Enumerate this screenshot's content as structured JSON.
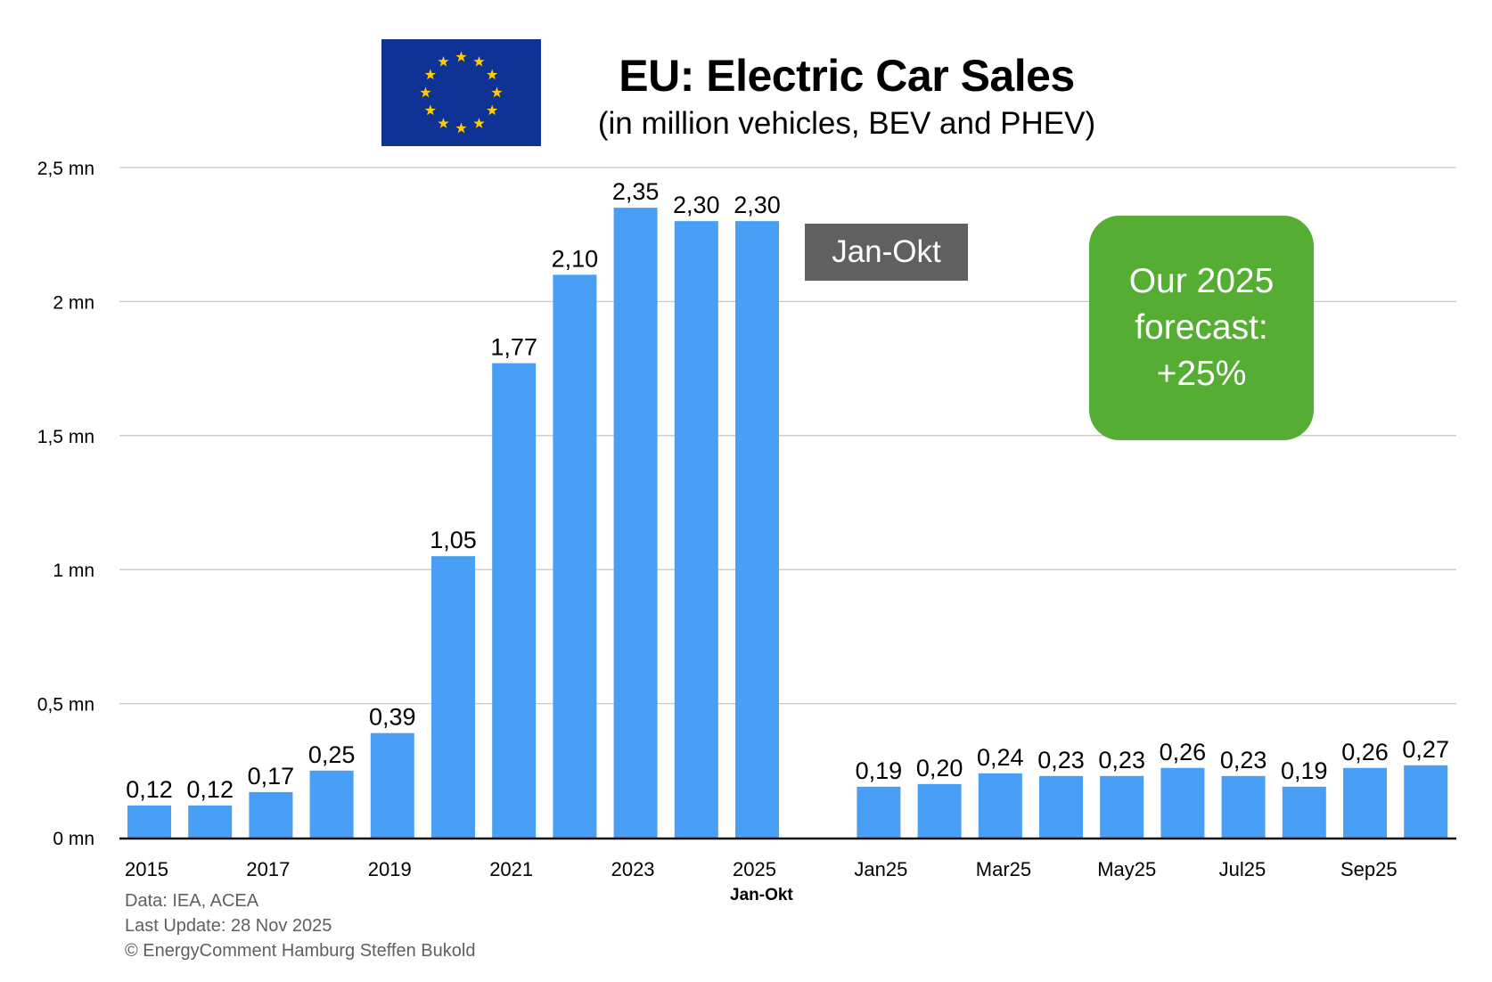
{
  "header": {
    "flag_icon": "eu-flag-icon",
    "title": "EU: Electric Car Sales",
    "subtitle": "(in million vehicles, BEV and PHEV)"
  },
  "annotations": {
    "jan_okt_box": "Jan-Okt",
    "forecast_lines": [
      "Our 2025",
      "forecast:",
      "+25%"
    ]
  },
  "footer": {
    "source": "Data: IEA, ACEA",
    "updated": "Last Update: 28 Nov 2025",
    "copyright": "© EnergyComment Hamburg Steffen Bukold"
  },
  "colors": {
    "bar": "#489ff5",
    "forecast_box": "#55ad34",
    "jan_okt_box": "#606060",
    "flag_blue": "#0f3395",
    "flag_star": "#ffcc00",
    "gridline": "#c8c8c8",
    "footer_text": "#5f5f5f"
  },
  "chart_data": {
    "type": "bar",
    "title": "EU: Electric Car Sales",
    "subtitle": "(in million vehicles, BEV and PHEV)",
    "xlabel": "",
    "ylabel": "",
    "ylim": [
      0,
      2.5
    ],
    "yticks": [
      0,
      0.5,
      1,
      1.5,
      2,
      2.5
    ],
    "ytick_labels": [
      "0 mn",
      "0,5 mn",
      "1 mn",
      "1,5 mn",
      "2 mn",
      "2,5 mn"
    ],
    "grid": true,
    "legend": "none",
    "categories": [
      "2015",
      "2016",
      "2017",
      "2018",
      "2019",
      "2020",
      "2021",
      "2022",
      "2023",
      "2024",
      "2025",
      "",
      "Jan25",
      "Feb25",
      "Mar25",
      "Apr25",
      "May25",
      "Jun25",
      "Jul25",
      "Aug25",
      "Sep25",
      "Oct25"
    ],
    "values": [
      0.12,
      0.12,
      0.17,
      0.25,
      0.39,
      1.05,
      1.77,
      2.1,
      2.35,
      2.3,
      2.3,
      null,
      0.19,
      0.2,
      0.24,
      0.23,
      0.23,
      0.26,
      0.23,
      0.19,
      0.26,
      0.27
    ],
    "data_labels": [
      "0,12",
      "0,12",
      "0,17",
      "0,25",
      "0,39",
      "1,05",
      "1,77",
      "2,10",
      "2,35",
      "2,30",
      "2,30",
      "",
      "0,19",
      "0,20",
      "0,24",
      "0,23",
      "0,23",
      "0,26",
      "0,23",
      "0,19",
      "0,26",
      "0,27"
    ],
    "xtick_labels": [
      "2015",
      "",
      "2017",
      "",
      "2019",
      "",
      "2021",
      "",
      "2023",
      "",
      "2025",
      "",
      "Jan25",
      "",
      "Mar25",
      "",
      "May25",
      "",
      "Jul25",
      "",
      "Sep25",
      ""
    ],
    "xtick_sublabels": {
      "2025": "Jan-Okt"
    },
    "annotations": [
      "Jan-Okt",
      "Our 2025 forecast: +25%"
    ]
  }
}
